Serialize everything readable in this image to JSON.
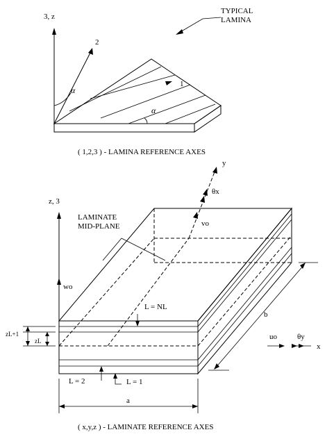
{
  "top": {
    "axis_vertical": "3, z",
    "axis_2": "2",
    "axis_1": "1",
    "angle_upper": "α",
    "angle_lower": "α",
    "typical_lamina_line1": "TYPICAL",
    "typical_lamina_line2": "LAMINA",
    "caption": "( 1,2,3 ) - LAMINA REFERENCE AXES"
  },
  "bottom": {
    "axis_z": "z, 3",
    "axis_y": "y",
    "axis_x": "x",
    "theta_x": "θx",
    "theta_y": "θy",
    "v_o": "vo",
    "u_o": "uo",
    "w_o": "wo",
    "midplane_line1": "LAMINATE",
    "midplane_line2": "MID-PLANE",
    "layer_top": "L = NL",
    "layer_2": "L = 2",
    "layer_1": "L = 1",
    "z_l_plus_1": "zL+1",
    "z_l": "zL",
    "dim_a": "a",
    "dim_b": "b",
    "caption": "( x,y,z ) - LAMINATE REFERENCE AXES"
  }
}
